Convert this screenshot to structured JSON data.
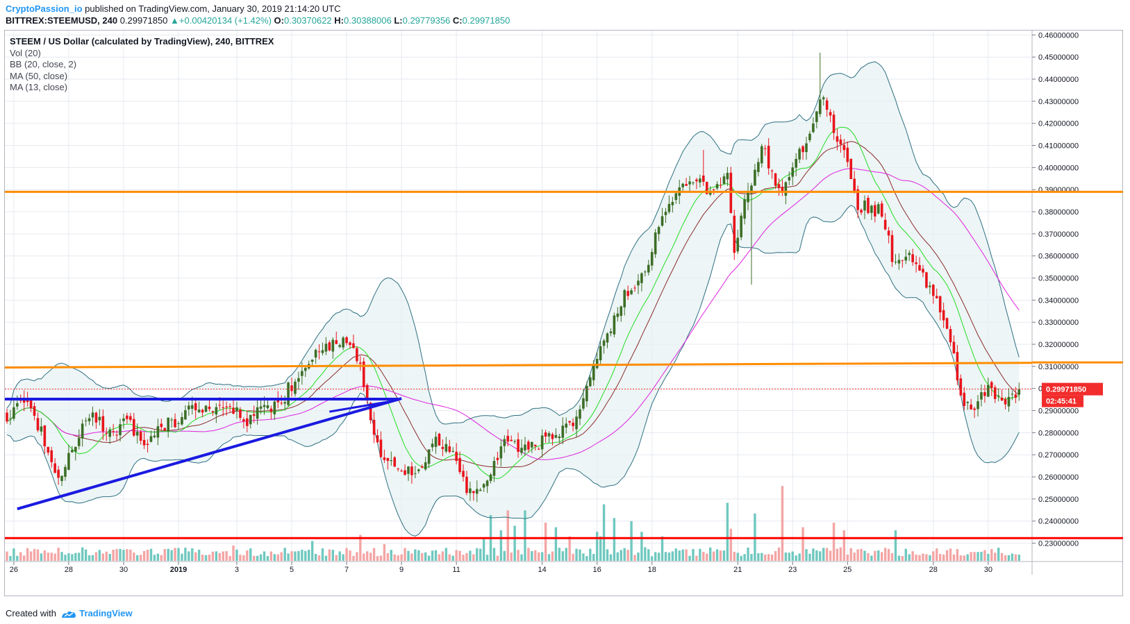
{
  "header": {
    "publisher": "CryptoPassion_io",
    "published_text": "published on TradingView.com, January 30, 2019 21:14:20 UTC",
    "symbol": "BITTREX:STEEMUSD, 240",
    "last_price": "0.29971850",
    "change": "+0.00420134 (+1.42%)",
    "o_label": "O:",
    "o_value": "0.30370622",
    "h_label": "H:",
    "h_value": "0.30388006",
    "l_label": "L:",
    "l_value": "0.29779356",
    "c_label": "C:",
    "c_value": "0.29971850"
  },
  "legend": {
    "title": "STEEM / US Dollar (calculated by TradingView), 240, BITTREX",
    "indicators": [
      "Vol (20)",
      "BB (20, close, 2)",
      "MA (50, close)",
      "MA (13, close)"
    ]
  },
  "footer": {
    "created_with": "Created with",
    "brand": "TradingView"
  },
  "colors": {
    "up": "#3c6e26",
    "down": "#e8141c",
    "vol_up": "#6fc8bf",
    "vol_down": "#f4a5a5",
    "bb": "#2d6f80",
    "bb_fill": "#e6f1f2",
    "ma50": "#e020e0",
    "ma13": "#22dd22",
    "ma20": "#8b2b2b",
    "support_orange": "#ff8c00",
    "support_red": "#ff0000",
    "trend_blue": "#1a1ae0",
    "price_label_bg": "#f22c2c",
    "grid": "#e6e9ef"
  },
  "chart_data": {
    "type": "candlestick",
    "y_axis": {
      "range": [
        0.222,
        0.462
      ],
      "ticks": [
        "0.46000000",
        "0.45000000",
        "0.44000000",
        "0.43000000",
        "0.42000000",
        "0.41000000",
        "0.40000000",
        "0.39000000",
        "0.38000000",
        "0.37000000",
        "0.36000000",
        "0.35000000",
        "0.34000000",
        "0.33000000",
        "0.32000000",
        "0.31000000",
        "0.30000000",
        "0.29000000",
        "0.28000000",
        "0.27000000",
        "0.26000000",
        "0.25000000",
        "0.24000000",
        "0.23000000"
      ]
    },
    "x_axis": {
      "labels": [
        "26",
        "28",
        "30",
        "2019",
        "3",
        "5",
        "7",
        "9",
        "11",
        "14",
        "16",
        "18",
        "21",
        "23",
        "25",
        "28",
        "30"
      ]
    },
    "last_price_label": "0.29971850",
    "countdown_label": "02:45:41",
    "horizontal_levels": [
      {
        "name": "orange-resistance-upper",
        "price": 0.389,
        "color": "#ff8c00"
      },
      {
        "name": "orange-resistance-lower",
        "price_start": 0.3095,
        "price_end": 0.3118,
        "color": "#ff8c00"
      },
      {
        "name": "red-support",
        "price": 0.2323,
        "color": "#ff0000"
      },
      {
        "name": "blue-flat-resistance",
        "price": 0.2952,
        "color": "#1a1ae0"
      }
    ],
    "trendline": {
      "from_price": 0.2455,
      "to_price": 0.2955,
      "color": "#1a1ae0"
    },
    "anchors": [
      [
        0,
        0.288
      ],
      [
        5,
        0.294
      ],
      [
        10,
        0.281
      ],
      [
        15,
        0.258
      ],
      [
        20,
        0.276
      ],
      [
        25,
        0.289
      ],
      [
        30,
        0.279
      ],
      [
        35,
        0.285
      ],
      [
        40,
        0.276
      ],
      [
        45,
        0.283
      ],
      [
        50,
        0.286
      ],
      [
        55,
        0.293
      ],
      [
        60,
        0.289
      ],
      [
        65,
        0.292
      ],
      [
        70,
        0.284
      ],
      [
        75,
        0.292
      ],
      [
        80,
        0.291
      ],
      [
        82,
        0.3
      ],
      [
        85,
        0.305
      ],
      [
        90,
        0.315
      ],
      [
        95,
        0.321
      ],
      [
        100,
        0.322
      ],
      [
        103,
        0.311
      ],
      [
        106,
        0.283
      ],
      [
        110,
        0.265
      ],
      [
        115,
        0.264
      ],
      [
        120,
        0.262
      ],
      [
        125,
        0.276
      ],
      [
        130,
        0.27
      ],
      [
        135,
        0.252
      ],
      [
        140,
        0.258
      ],
      [
        145,
        0.276
      ],
      [
        150,
        0.272
      ],
      [
        155,
        0.275
      ],
      [
        160,
        0.28
      ],
      [
        165,
        0.285
      ],
      [
        170,
        0.305
      ],
      [
        175,
        0.325
      ],
      [
        180,
        0.342
      ],
      [
        185,
        0.35
      ],
      [
        190,
        0.372
      ],
      [
        195,
        0.39
      ],
      [
        200,
        0.395
      ],
      [
        205,
        0.388
      ],
      [
        210,
        0.395
      ],
      [
        212,
        0.36
      ],
      [
        215,
        0.384
      ],
      [
        220,
        0.41
      ],
      [
        225,
        0.388
      ],
      [
        230,
        0.403
      ],
      [
        235,
        0.42
      ],
      [
        238,
        0.432
      ],
      [
        242,
        0.412
      ],
      [
        245,
        0.404
      ],
      [
        248,
        0.383
      ],
      [
        255,
        0.38
      ],
      [
        258,
        0.36
      ],
      [
        265,
        0.358
      ],
      [
        270,
        0.342
      ],
      [
        275,
        0.322
      ],
      [
        278,
        0.296
      ],
      [
        282,
        0.292
      ],
      [
        286,
        0.299
      ],
      [
        290,
        0.295
      ],
      [
        293,
        0.297
      ],
      [
        295,
        0.2997
      ]
    ],
    "volume_spikes": [
      [
        18,
        0.5
      ],
      [
        48,
        0.7
      ],
      [
        60,
        0.6
      ],
      [
        66,
        1.0
      ],
      [
        89,
        1.3
      ],
      [
        103,
        1.7
      ],
      [
        110,
        1.1
      ],
      [
        125,
        0.7
      ],
      [
        139,
        1.5
      ],
      [
        141,
        3.0
      ],
      [
        144,
        2.0
      ],
      [
        146,
        3.3
      ],
      [
        148,
        2.3
      ],
      [
        151,
        3.3
      ],
      [
        157,
        2.5
      ],
      [
        160,
        2.2
      ],
      [
        164,
        1.6
      ],
      [
        172,
        1.9
      ],
      [
        173,
        1.6
      ],
      [
        174,
        3.7
      ],
      [
        177,
        2.8
      ],
      [
        182,
        2.6
      ],
      [
        185,
        1.9
      ],
      [
        191,
        1.6
      ],
      [
        210,
        3.8
      ],
      [
        211,
        2.1
      ],
      [
        218,
        3.1
      ],
      [
        226,
        4.9
      ],
      [
        232,
        2.2
      ],
      [
        241,
        2.5
      ],
      [
        244,
        2.0
      ],
      [
        259,
        2.0
      ]
    ]
  }
}
